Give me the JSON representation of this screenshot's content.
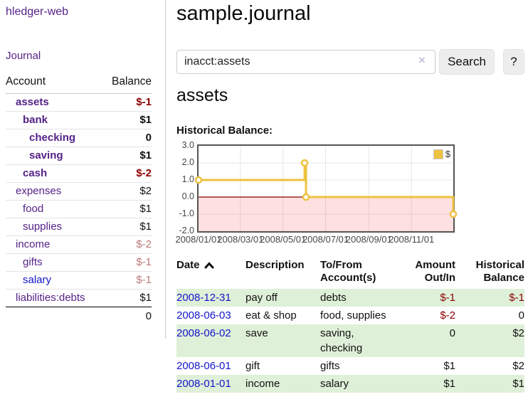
{
  "app": {
    "title": "hledger-web"
  },
  "sidebar": {
    "journal_link": "Journal",
    "accounts_table": {
      "col_account": "Account",
      "col_balance": "Balance",
      "rows": [
        {
          "name": "assets",
          "indent": 0,
          "bold": true,
          "link": "purple",
          "balance": "$-1",
          "balance_tone": "neg-strong"
        },
        {
          "name": "bank",
          "indent": 1,
          "bold": true,
          "link": "purple",
          "balance": "$1",
          "balance_tone": "pos"
        },
        {
          "name": "checking",
          "indent": 2,
          "bold": true,
          "link": "purple",
          "balance": "0",
          "balance_tone": "pos"
        },
        {
          "name": "saving",
          "indent": 2,
          "bold": true,
          "link": "purple",
          "balance": "$1",
          "balance_tone": "pos"
        },
        {
          "name": "cash",
          "indent": 1,
          "bold": true,
          "link": "purple",
          "balance": "$-2",
          "balance_tone": "neg-strong"
        },
        {
          "name": "expenses",
          "indent": 0,
          "bold": false,
          "link": "purple",
          "balance": "$2",
          "balance_tone": "pos"
        },
        {
          "name": "food",
          "indent": 1,
          "bold": false,
          "link": "purple",
          "balance": "$1",
          "balance_tone": "pos"
        },
        {
          "name": "supplies",
          "indent": 1,
          "bold": false,
          "link": "purple",
          "balance": "$1",
          "balance_tone": "pos"
        },
        {
          "name": "income",
          "indent": 0,
          "bold": false,
          "link": "purple",
          "balance": "$-2",
          "balance_tone": "neg-faded"
        },
        {
          "name": "gifts",
          "indent": 1,
          "bold": false,
          "link": "purple",
          "balance": "$-1",
          "balance_tone": "neg-faded"
        },
        {
          "name": "salary",
          "indent": 1,
          "bold": false,
          "link": "blue",
          "balance": "$-1",
          "balance_tone": "neg-faded"
        },
        {
          "name": "liabilities:debts",
          "indent": 0,
          "bold": false,
          "link": "purple",
          "balance": "$1",
          "balance_tone": "pos"
        }
      ],
      "total": "0"
    }
  },
  "main": {
    "title": "sample.journal",
    "search": {
      "value": "inacct:assets",
      "clear_icon": "×",
      "search_button": "Search",
      "help_button": "?"
    },
    "account_heading": "assets",
    "section_label": "Historical Balance:"
  },
  "chart_data": {
    "type": "line",
    "step": true,
    "title": "Historical Balance",
    "x_start": "2008-01-01",
    "x_end": "2008-12-31",
    "ylim": [
      -2,
      3
    ],
    "y_ticks": [
      "3.0",
      "2.0",
      "1.0",
      "0.0",
      "-1.0",
      "-2.0"
    ],
    "x_ticks": [
      "2008/01/01",
      "2008/03/01",
      "2008/05/01",
      "2008/07/01",
      "2008/09/01",
      "2008/11/01"
    ],
    "grid": true,
    "legend": {
      "position": "top-right",
      "label": "$"
    },
    "series": [
      {
        "name": "$",
        "color": "#edc240",
        "points": [
          [
            "2008-01-01",
            1
          ],
          [
            "2008-06-01",
            2
          ],
          [
            "2008-06-03",
            0
          ],
          [
            "2008-12-31",
            -1
          ]
        ]
      }
    ],
    "negative_region_color": "rgba(255,0,0,0.12)",
    "zero_line_color": "#8b0000",
    "grid_color": "#e6e6e6"
  },
  "register": {
    "headers": [
      {
        "line1": "Date",
        "line2": "",
        "align": "left",
        "sortable": true,
        "sort": "asc"
      },
      {
        "line1": "Description",
        "line2": "",
        "align": "left",
        "sortable": false
      },
      {
        "line1": "To/From",
        "line2": "Account(s)",
        "align": "left",
        "sortable": false
      },
      {
        "line1": "Amount",
        "line2": "Out/In",
        "align": "right",
        "sortable": false
      },
      {
        "line1": "Historical",
        "line2": "Balance",
        "align": "right",
        "sortable": false
      }
    ],
    "rows": [
      {
        "date": "2008-12-31",
        "description": "pay off",
        "accounts": "debts",
        "amount": "$-1",
        "amount_tone": "neg",
        "balance": "$-1",
        "balance_tone": "neg"
      },
      {
        "date": "2008-06-03",
        "description": "eat & shop",
        "accounts": "food, supplies",
        "amount": "$-2",
        "amount_tone": "neg",
        "balance": "0",
        "balance_tone": "pos"
      },
      {
        "date": "2008-06-02",
        "description": "save",
        "accounts": "saving, checking",
        "amount": "0",
        "amount_tone": "pos",
        "balance": "$2",
        "balance_tone": "pos"
      },
      {
        "date": "2008-06-01",
        "description": "gift",
        "accounts": "gifts",
        "amount": "$1",
        "amount_tone": "pos",
        "balance": "$2",
        "balance_tone": "pos"
      },
      {
        "date": "2008-01-01",
        "description": "income",
        "accounts": "salary",
        "amount": "$1",
        "amount_tone": "pos",
        "balance": "$1",
        "balance_tone": "pos"
      }
    ]
  },
  "colors": {
    "link_purple": "#552288",
    "link_blue": "#1414cc",
    "negative_strong": "#8b0000",
    "negative_faded": "#bd7878",
    "row_green": "#dff0d8",
    "series_gold": "#edc240",
    "chart_border": "#545454"
  }
}
